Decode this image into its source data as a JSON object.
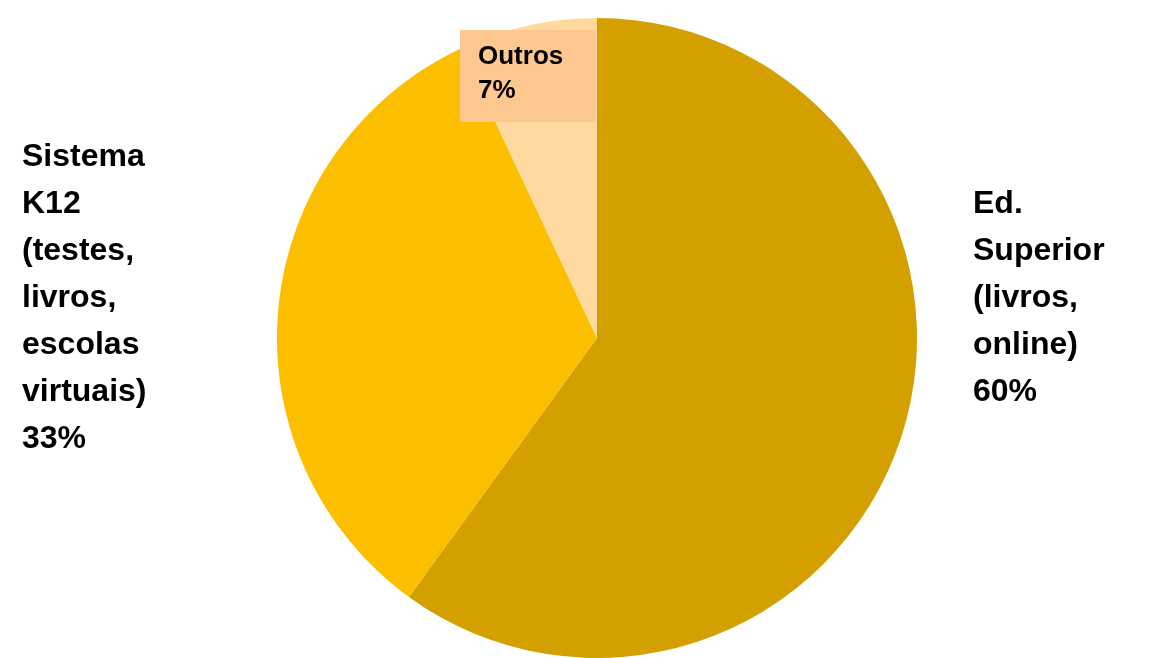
{
  "chart_data": {
    "type": "pie",
    "categories": [
      "Ed. Superior (livros, online)",
      "Sistema K12 (testes, livros, escolas virtuais)",
      "Outros"
    ],
    "values": [
      60,
      33,
      7
    ],
    "colors": [
      "#d4a000",
      "#fcbf00",
      "#ffd9a0"
    ],
    "value_labels": [
      "60%",
      "33%",
      "7%"
    ]
  }
}
